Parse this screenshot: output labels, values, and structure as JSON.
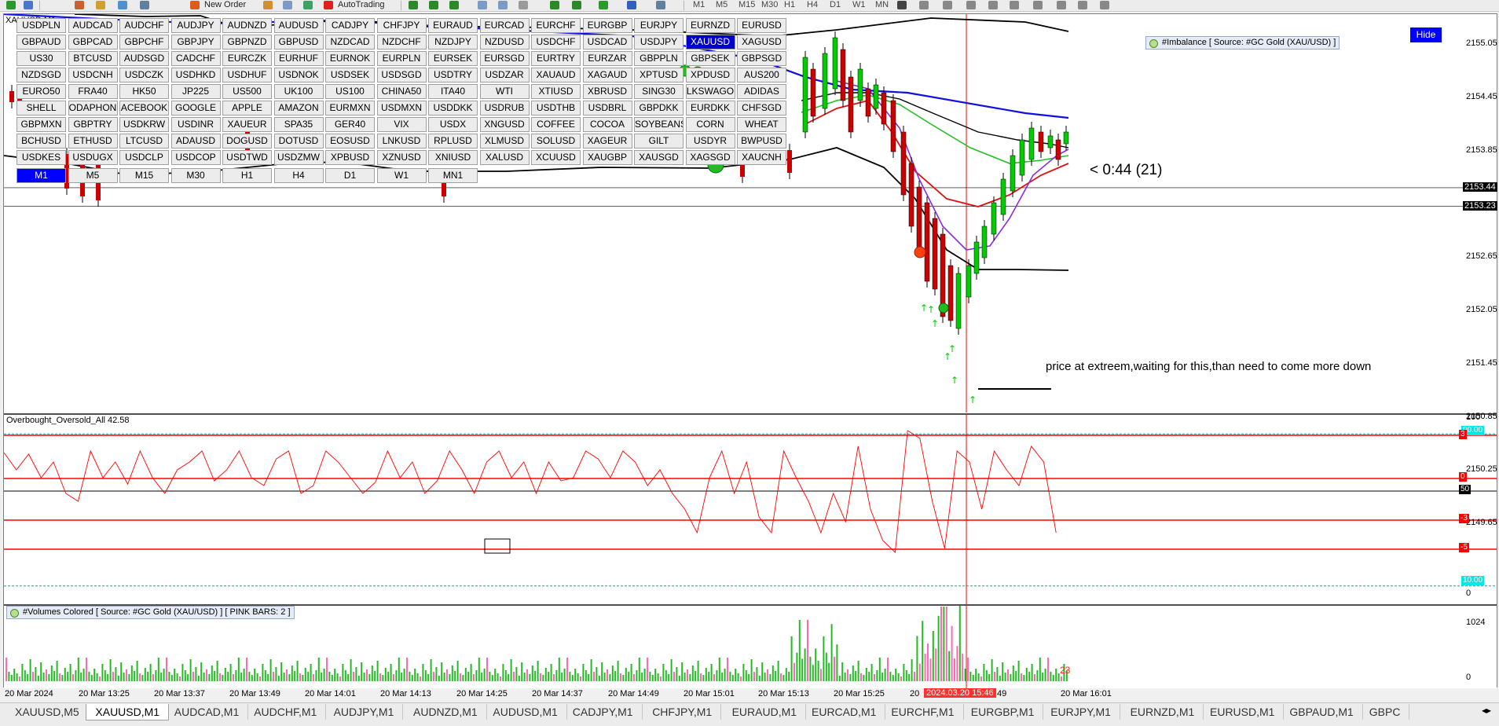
{
  "toolbar": {
    "new_order": "New Order",
    "autotrading": "AutoTrading",
    "timeframes": [
      "M1",
      "M5",
      "M15",
      "M30",
      "H1",
      "H4",
      "D1",
      "W1",
      "MN"
    ]
  },
  "chart": {
    "window_title": "XAUUSD,M1",
    "symbol_rows": [
      [
        "USDPLN",
        "AUDCAD",
        "AUDCHF",
        "AUDJPY",
        "AUDNZD",
        "AUDUSD",
        "CADJPY",
        "CHFJPY",
        "EURAUD",
        "EURCAD",
        "EURCHF",
        "EURGBP",
        "EURJPY",
        "EURNZD",
        "EURUSD"
      ],
      [
        "GBPAUD",
        "GBPCAD",
        "GBPCHF",
        "GBPJPY",
        "GBPNZD",
        "GBPUSD",
        "NZDCAD",
        "NZDCHF",
        "NZDJPY",
        "NZDUSD",
        "USDCHF",
        "USDCAD",
        "USDJPY",
        "XAUUSD",
        "XAGUSD"
      ],
      [
        "US30",
        "BTCUSD",
        "AUDSGD",
        "CADCHF",
        "EURCZK",
        "EURHUF",
        "EURNOK",
        "EURPLN",
        "EURSEK",
        "EURSGD",
        "EURTRY",
        "EURZAR",
        "GBPPLN",
        "GBPSEK",
        "GBPSGD"
      ],
      [
        "NZDSGD",
        "USDCNH",
        "USDCZK",
        "USDHKD",
        "USDHUF",
        "USDNOK",
        "USDSEK",
        "USDSGD",
        "USDTRY",
        "USDZAR",
        "XAUAUD",
        "XAGAUD",
        "XPTUSD",
        "XPDUSD",
        "AUS200"
      ],
      [
        "EURO50",
        "FRA40",
        "HK50",
        "JP225",
        "US500",
        "UK100",
        "US100",
        "CHINA50",
        "ITA40",
        "WTI",
        "XTIUSD",
        "XBRUSD",
        "SING30",
        "LKSWAGO",
        "ADIDAS"
      ],
      [
        "SHELL",
        "ODAPHON",
        "ACEBOOK",
        "GOOGLE",
        "APPLE",
        "AMAZON",
        "EURMXN",
        "USDMXN",
        "USDDKK",
        "USDRUB",
        "USDTHB",
        "USDBRL",
        "GBPDKK",
        "EURDKK",
        "CHFSGD"
      ],
      [
        "GBPMXN",
        "GBPTRY",
        "USDKRW",
        "USDINR",
        "XAUEUR",
        "SPA35",
        "GER40",
        "VIX",
        "USDX",
        "XNGUSD",
        "COFFEE",
        "COCOA",
        "SOYBEANS",
        "CORN",
        "WHEAT"
      ],
      [
        "BCHUSD",
        "ETHUSD",
        "LTCUSD",
        "ADAUSD",
        "DOGUSD",
        "DOTUSD",
        "EOSUSD",
        "LNKUSD",
        "RPLUSD",
        "XLMUSD",
        "SOLUSD",
        "XAGEUR",
        "GILT",
        "USDYR",
        "BWPUSD"
      ],
      [
        "USDKES",
        "USDUGX",
        "USDCLP",
        "USDCOP",
        "USDTWD",
        "USDZMW",
        "XPBUSD",
        "XZNUSD",
        "XNIUSD",
        "XALUSD",
        "XCUUSD",
        "XAUGBP",
        "XAUSGD",
        "XAGSGD",
        "XAUCNH"
      ]
    ],
    "selected_symbol": "XAUUSD",
    "panel_timeframes": [
      "M1",
      "M5",
      "M15",
      "M30",
      "H1",
      "H4",
      "D1",
      "W1",
      "MN1"
    ],
    "selected_timeframe": "M1",
    "hide_label": "Hide",
    "imbalance_label": "#Imbalance [ Source: #GC Gold (XAU/USD) ]",
    "countdown": "< 0:44 (21)",
    "annotation": "price at extreem,waiting for this,than need to come more down",
    "price_ticks": [
      "2155.05",
      "2154.45",
      "2153.85",
      "2152.65",
      "2152.05",
      "2151.45",
      "2150.85",
      "2150.25",
      "2149.65"
    ],
    "price_tag_high": "2153.44",
    "price_tag_current": "2153.23"
  },
  "oscillator": {
    "title": "Overbought_Oversold_All 42.58",
    "axis_top": "100",
    "axis_bottom": "0",
    "level_upper_cyan": "90.00",
    "level_lower_cyan": "10.00",
    "level_50": "50",
    "tag_plus3": "3",
    "tag_zero": "0",
    "tag_minus3": "-3",
    "tag_minus5": "-5",
    "value": 42.58
  },
  "volumes": {
    "label": "#Volumes Colored [ Source: #GC Gold (XAU/USD) ]  [ PINK BARS: 2 ]",
    "axis_max": "1024",
    "axis_min": "0",
    "current": "23"
  },
  "time_axis": {
    "labels": [
      "20 Mar 2024",
      "20 Mar 13:25",
      "20 Mar 13:37",
      "20 Mar 13:49",
      "20 Mar 14:01",
      "20 Mar 14:13",
      "20 Mar 14:25",
      "20 Mar 14:37",
      "20 Mar 14:49",
      "20 Mar 15:01",
      "20 Mar 15:13",
      "20 Mar 15:25",
      "20",
      "r 15:49",
      "20 Mar 16:01"
    ],
    "crosshair_time": "2024.03.20 15:46"
  },
  "tabs": [
    "XAUUSD,M5",
    "XAUUSD,M1",
    "AUDCAD,M1",
    "AUDCHF,M1",
    "AUDJPY,M1",
    "AUDNZD,M1",
    "AUDUSD,M1",
    "CADJPY,M1",
    "CHFJPY,M1",
    "EURAUD,M1",
    "EURCAD,M1",
    "EURCHF,M1",
    "EURGBP,M1",
    "EURJPY,M1",
    "EURNZD,M1",
    "EURUSD,M1",
    "GBPAUD,M1",
    "GBPC"
  ],
  "active_tab": "XAUUSD,M1",
  "colors": {
    "sell_line": "#ff0000",
    "ma_blue": "#1010e0",
    "ma_black": "#000000",
    "ma_green": "#22c022",
    "ma_purple": "#8a2be2",
    "ma_red": "#e01010",
    "vol_green": "#22bb22",
    "vol_pink": "#ff69b4",
    "selected_button": "#0000cc"
  }
}
